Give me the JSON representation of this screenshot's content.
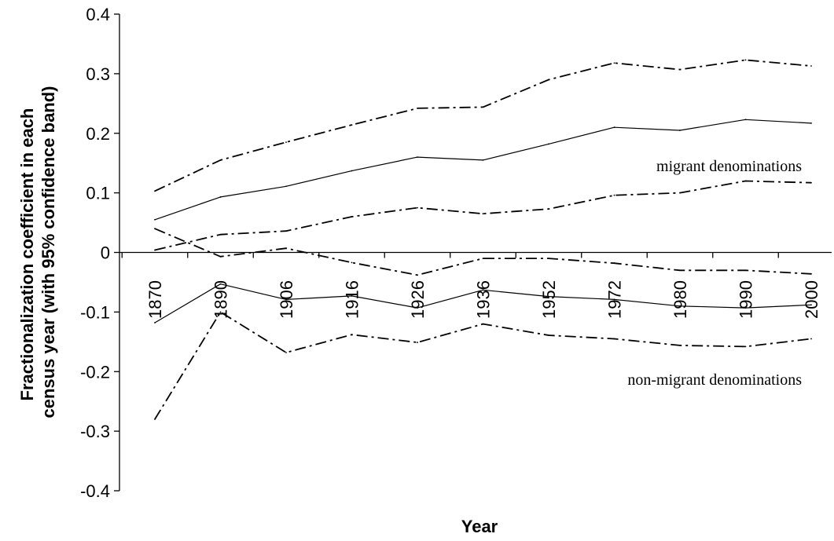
{
  "chart_data": {
    "type": "line",
    "title": "",
    "xlabel": "Year",
    "ylabel_line1": "Fractionalization coefficient in each",
    "ylabel_line2": "census year (with 95% confidence band)",
    "ylim": [
      -0.4,
      0.4
    ],
    "yticks": [
      "0.4",
      "0.3",
      "0.2",
      "0.1",
      "0",
      "-0.1",
      "-0.2",
      "-0.3",
      "-0.4"
    ],
    "categories": [
      "1870",
      "1890",
      "1906",
      "1916",
      "1926",
      "1936",
      "1952",
      "1972",
      "1980",
      "1990",
      "2000"
    ],
    "grid": false,
    "legend": "none",
    "annotations": {
      "migrant": "migrant denominations",
      "non_migrant": "non-migrant denominations"
    },
    "series": [
      {
        "group": "migrant",
        "role": "estimate",
        "style": "solid",
        "values": [
          0.055,
          0.093,
          0.111,
          0.137,
          0.16,
          0.155,
          0.182,
          0.21,
          0.205,
          0.223,
          0.217
        ]
      },
      {
        "group": "migrant",
        "role": "upper",
        "style": "dashdot",
        "values": [
          0.103,
          0.155,
          0.185,
          0.214,
          0.242,
          0.244,
          0.29,
          0.318,
          0.307,
          0.323,
          0.313
        ]
      },
      {
        "group": "migrant",
        "role": "lower",
        "style": "dashdot",
        "values": [
          0.004,
          0.03,
          0.036,
          0.06,
          0.075,
          0.065,
          0.073,
          0.096,
          0.1,
          0.12,
          0.117
        ]
      },
      {
        "group": "non-migrant",
        "role": "estimate",
        "style": "solid",
        "values": [
          -0.118,
          -0.053,
          -0.079,
          -0.073,
          -0.093,
          -0.063,
          -0.074,
          -0.079,
          -0.09,
          -0.093,
          -0.088
        ]
      },
      {
        "group": "non-migrant",
        "role": "upper",
        "style": "dashdot",
        "values": [
          0.04,
          -0.007,
          0.007,
          -0.017,
          -0.038,
          -0.01,
          -0.01,
          -0.018,
          -0.03,
          -0.03,
          -0.036
        ]
      },
      {
        "group": "non-migrant",
        "role": "lower",
        "style": "dashdot",
        "values": [
          -0.28,
          -0.1,
          -0.168,
          -0.138,
          -0.151,
          -0.12,
          -0.139,
          -0.145,
          -0.156,
          -0.158,
          -0.145
        ]
      }
    ],
    "colors": {
      "line": "#000000",
      "axis": "#000000",
      "background": "#ffffff"
    }
  }
}
